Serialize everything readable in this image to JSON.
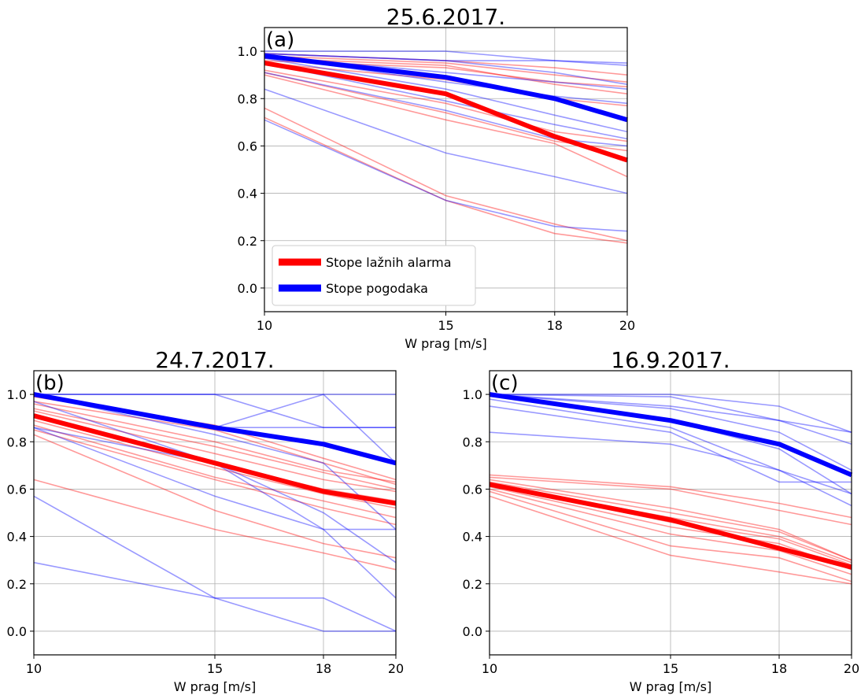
{
  "colors": {
    "false_alarm": "#ff0000",
    "hit": "#0000ff",
    "grid": "#b0b0b0",
    "axis": "#000000"
  },
  "legend": {
    "false_alarm_label": "Stope lažnih alarma",
    "hit_label": "Stope pogodaka",
    "placement": "lower-left of panel (a)"
  },
  "chart_data": [
    {
      "type": "line",
      "title": "25.6.2017.",
      "panel_label": "(a)",
      "xlabel": "W prag [m/s]",
      "ylabel": "",
      "x_ticks": [
        10,
        15,
        18,
        20
      ],
      "y_ticks": [
        0.0,
        0.2,
        0.4,
        0.6,
        0.8,
        1.0
      ],
      "y_tick_labels": [
        "0.0",
        "0.2",
        "0.4",
        "0.6",
        "0.8",
        "1.0"
      ],
      "xlim": [
        10,
        20
      ],
      "ylim": [
        -0.1,
        1.1
      ],
      "grid": true,
      "x": [
        10,
        15,
        18,
        20
      ],
      "mean_false_alarm": [
        0.95,
        0.82,
        0.64,
        0.54
      ],
      "mean_hit": [
        0.98,
        0.89,
        0.8,
        0.71
      ],
      "false_alarm_members": [
        [
          0.99,
          0.96,
          0.93,
          0.9
        ],
        [
          0.98,
          0.95,
          0.9,
          0.87
        ],
        [
          0.97,
          0.94,
          0.86,
          0.82
        ],
        [
          0.96,
          0.93,
          0.87,
          0.85
        ],
        [
          0.95,
          0.88,
          0.8,
          0.77
        ],
        [
          0.92,
          0.78,
          0.66,
          0.62
        ],
        [
          0.91,
          0.74,
          0.62,
          0.58
        ],
        [
          0.9,
          0.71,
          0.61,
          0.47
        ],
        [
          0.76,
          0.39,
          0.27,
          0.2
        ],
        [
          0.72,
          0.37,
          0.23,
          0.19
        ]
      ],
      "hit_members": [
        [
          1.0,
          1.0,
          0.96,
          0.95
        ],
        [
          0.99,
          0.96,
          0.96,
          0.94
        ],
        [
          0.99,
          0.96,
          0.91,
          0.86
        ],
        [
          0.98,
          0.91,
          0.87,
          0.84
        ],
        [
          0.98,
          0.87,
          0.81,
          0.78
        ],
        [
          0.97,
          0.84,
          0.73,
          0.66
        ],
        [
          0.95,
          0.79,
          0.69,
          0.63
        ],
        [
          0.91,
          0.75,
          0.63,
          0.6
        ],
        [
          0.84,
          0.57,
          0.47,
          0.4
        ],
        [
          0.71,
          0.37,
          0.26,
          0.24
        ]
      ]
    },
    {
      "type": "line",
      "title": "24.7.2017.",
      "panel_label": "(b)",
      "xlabel": "W prag [m/s]",
      "ylabel": "",
      "x_ticks": [
        10,
        15,
        18,
        20
      ],
      "y_ticks": [
        0.0,
        0.2,
        0.4,
        0.6,
        0.8,
        1.0
      ],
      "y_tick_labels": [
        "0.0",
        "0.2",
        "0.4",
        "0.6",
        "0.8",
        "1.0"
      ],
      "xlim": [
        10,
        20
      ],
      "ylim": [
        -0.1,
        1.1
      ],
      "grid": true,
      "x": [
        10,
        15,
        18,
        20
      ],
      "mean_false_alarm": [
        0.91,
        0.71,
        0.59,
        0.54
      ],
      "mean_hit": [
        1.0,
        0.86,
        0.79,
        0.71
      ],
      "false_alarm_members": [
        [
          0.99,
          0.87,
          0.73,
          0.64
        ],
        [
          0.97,
          0.85,
          0.71,
          0.62
        ],
        [
          0.96,
          0.8,
          0.68,
          0.63
        ],
        [
          0.94,
          0.78,
          0.67,
          0.6
        ],
        [
          0.93,
          0.75,
          0.64,
          0.59
        ],
        [
          0.91,
          0.71,
          0.6,
          0.55
        ],
        [
          0.89,
          0.69,
          0.58,
          0.52
        ],
        [
          0.87,
          0.65,
          0.55,
          0.48
        ],
        [
          0.85,
          0.64,
          0.52,
          0.45
        ],
        [
          0.83,
          0.51,
          0.37,
          0.31
        ],
        [
          0.64,
          0.43,
          0.33,
          0.26
        ]
      ],
      "hit_members": [
        [
          1.0,
          1.0,
          1.0,
          1.0
        ],
        [
          1.0,
          1.0,
          0.86,
          0.86
        ],
        [
          1.0,
          0.86,
          0.86,
          0.86
        ],
        [
          1.0,
          0.86,
          1.0,
          0.71
        ],
        [
          1.0,
          0.83,
          0.71,
          0.43
        ],
        [
          0.97,
          0.71,
          0.5,
          0.29
        ],
        [
          0.86,
          0.57,
          0.43,
          0.43
        ],
        [
          0.86,
          0.71,
          0.43,
          0.14
        ],
        [
          0.57,
          0.14,
          0.14,
          0.0
        ],
        [
          0.29,
          0.14,
          0.0,
          0.0
        ]
      ]
    },
    {
      "type": "line",
      "title": "16.9.2017.",
      "panel_label": "(c)",
      "xlabel": "W prag [m/s]",
      "ylabel": "",
      "x_ticks": [
        10,
        15,
        18,
        20
      ],
      "y_ticks": [
        0.0,
        0.2,
        0.4,
        0.6,
        0.8,
        1.0
      ],
      "y_tick_labels": [
        "0.0",
        "0.2",
        "0.4",
        "0.6",
        "0.8",
        "1.0"
      ],
      "xlim": [
        10,
        20
      ],
      "ylim": [
        -0.1,
        1.1
      ],
      "grid": true,
      "x": [
        10,
        15,
        18,
        20
      ],
      "mean_false_alarm": [
        0.62,
        0.47,
        0.35,
        0.27
      ],
      "mean_hit": [
        1.0,
        0.89,
        0.79,
        0.66
      ],
      "false_alarm_members": [
        [
          0.66,
          0.61,
          0.54,
          0.48
        ],
        [
          0.65,
          0.6,
          0.51,
          0.45
        ],
        [
          0.64,
          0.52,
          0.43,
          0.3
        ],
        [
          0.63,
          0.5,
          0.42,
          0.3
        ],
        [
          0.62,
          0.48,
          0.4,
          0.29
        ],
        [
          0.62,
          0.46,
          0.39,
          0.28
        ],
        [
          0.61,
          0.44,
          0.37,
          0.26
        ],
        [
          0.6,
          0.41,
          0.34,
          0.24
        ],
        [
          0.59,
          0.36,
          0.31,
          0.21
        ],
        [
          0.57,
          0.32,
          0.25,
          0.2
        ]
      ],
      "hit_members": [
        [
          1.0,
          1.0,
          0.95,
          0.84
        ],
        [
          1.0,
          0.99,
          0.89,
          0.84
        ],
        [
          1.0,
          0.95,
          0.89,
          0.79
        ],
        [
          1.0,
          0.94,
          0.84,
          0.68
        ],
        [
          1.0,
          0.89,
          0.77,
          0.58
        ],
        [
          0.98,
          0.86,
          0.68,
          0.58
        ],
        [
          0.95,
          0.84,
          0.63,
          0.63
        ],
        [
          0.84,
          0.79,
          0.68,
          0.53
        ]
      ]
    }
  ]
}
